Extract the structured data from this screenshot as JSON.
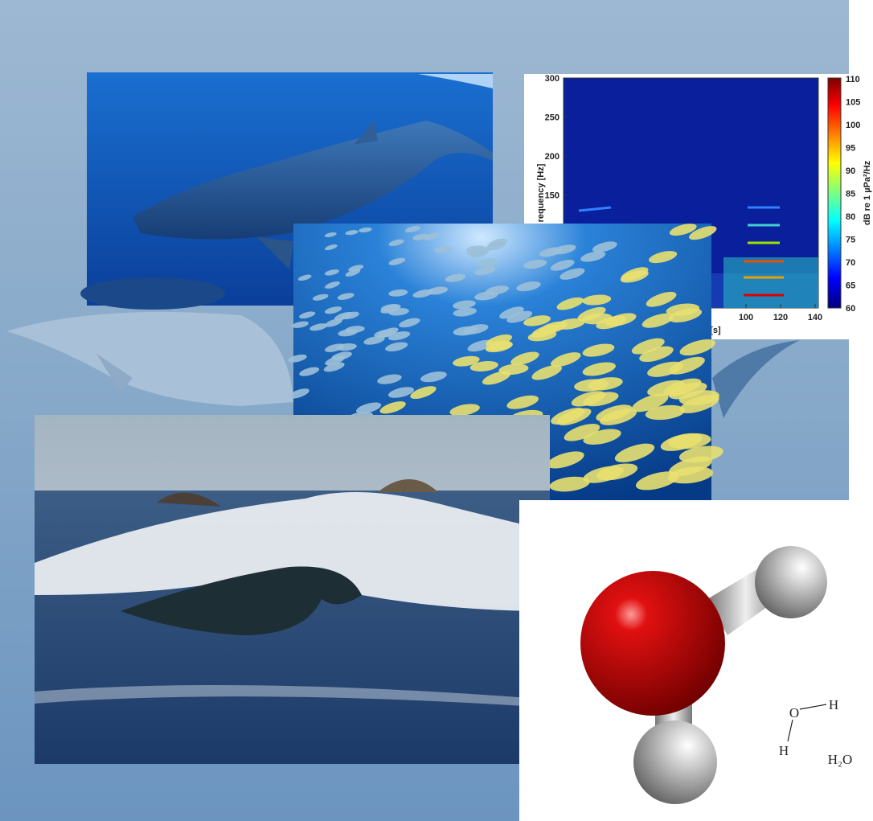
{
  "collage": {
    "spectrogram": {
      "y_axis_label": "requency [Hz]",
      "y_ticks": [
        300,
        250,
        200,
        150
      ],
      "x_axis_label": "[s]",
      "x_ticks": [
        100,
        120,
        140
      ],
      "colorbar_label": "dB re 1 µPa²/Hz",
      "colorbar_ticks": [
        110,
        105,
        100,
        95,
        90,
        85,
        80,
        75,
        70,
        65,
        60
      ]
    },
    "molecule": {
      "atom_o": "O",
      "atom_h1": "H",
      "atom_h2": "H",
      "formula": "H₂O"
    }
  }
}
